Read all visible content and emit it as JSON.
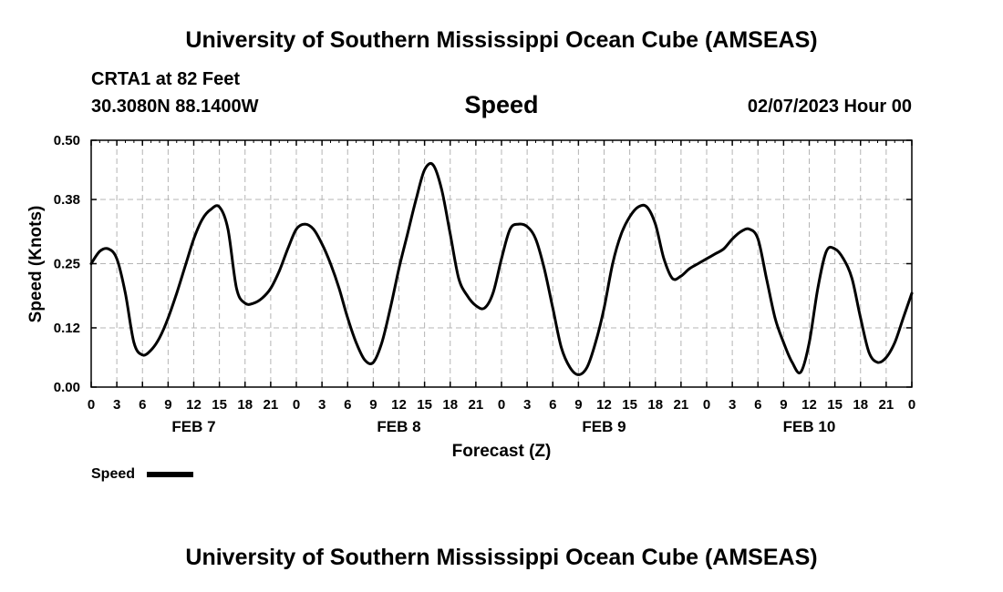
{
  "header": {
    "title": "University of Southern Mississippi Ocean Cube (AMSEAS)",
    "station": "CRTA1 at 82 Feet",
    "coordinates": "30.3080N  88.1400W",
    "plot_title": "Speed",
    "issued": "02/07/2023 Hour 00"
  },
  "footer": {
    "title": "University of Southern Mississippi Ocean Cube (AMSEAS)"
  },
  "colors": {
    "line": "#000000",
    "grid": "#b4b4b4",
    "frame": "#000000"
  },
  "chart_data": {
    "type": "line",
    "title": "Speed",
    "xlabel": "Forecast (Z)",
    "ylabel": "Speed (Knots)",
    "xlim": [
      0,
      96
    ],
    "ylim": [
      0,
      0.5
    ],
    "yticks": [
      0.0,
      0.12,
      0.25,
      0.38,
      0.5
    ],
    "ytick_labels": [
      "0.00",
      "0.12",
      "0.25",
      "0.38",
      "0.50"
    ],
    "xticks": [
      0,
      3,
      6,
      9,
      12,
      15,
      18,
      21,
      24,
      27,
      30,
      33,
      36,
      39,
      42,
      45,
      48,
      51,
      54,
      57,
      60,
      63,
      66,
      69,
      72,
      75,
      78,
      81,
      84,
      87,
      90,
      93,
      96
    ],
    "xtick_labels": [
      "0",
      "3",
      "6",
      "9",
      "12",
      "15",
      "18",
      "21",
      "0",
      "3",
      "6",
      "9",
      "12",
      "15",
      "18",
      "21",
      "0",
      "3",
      "6",
      "9",
      "12",
      "15",
      "18",
      "21",
      "0",
      "3",
      "6",
      "9",
      "12",
      "15",
      "18",
      "21",
      "0"
    ],
    "day_labels": [
      {
        "label": "FEB 7",
        "hour": 12
      },
      {
        "label": "FEB 8",
        "hour": 36
      },
      {
        "label": "FEB 9",
        "hour": 60
      },
      {
        "label": "FEB 10",
        "hour": 84
      }
    ],
    "grid": true,
    "legend": {
      "position": "bottom-left",
      "entries": [
        "Speed"
      ]
    },
    "series": [
      {
        "name": "Speed",
        "x": [
          0,
          1,
          2,
          3,
          4,
          5,
          6,
          7,
          8,
          9,
          10,
          11,
          12,
          13,
          14,
          15,
          16,
          17,
          18,
          19,
          20,
          21,
          22,
          23,
          24,
          25,
          26,
          27,
          28,
          29,
          30,
          31,
          32,
          33,
          34,
          35,
          36,
          37,
          38,
          39,
          40,
          41,
          42,
          43,
          44,
          45,
          46,
          47,
          48,
          49,
          50,
          51,
          52,
          53,
          54,
          55,
          56,
          57,
          58,
          59,
          60,
          61,
          62,
          63,
          64,
          65,
          66,
          67,
          68,
          69,
          70,
          71,
          72,
          73,
          74,
          75,
          76,
          77,
          78,
          79,
          80,
          81,
          82,
          83,
          84,
          85,
          86,
          87,
          88,
          89,
          90,
          91,
          92,
          93,
          94,
          95,
          96
        ],
        "values": [
          0.25,
          0.275,
          0.28,
          0.26,
          0.19,
          0.09,
          0.065,
          0.075,
          0.1,
          0.14,
          0.19,
          0.245,
          0.3,
          0.34,
          0.36,
          0.365,
          0.32,
          0.2,
          0.17,
          0.17,
          0.18,
          0.2,
          0.235,
          0.28,
          0.32,
          0.33,
          0.32,
          0.29,
          0.25,
          0.2,
          0.14,
          0.09,
          0.055,
          0.05,
          0.09,
          0.16,
          0.24,
          0.31,
          0.38,
          0.44,
          0.45,
          0.4,
          0.31,
          0.22,
          0.185,
          0.165,
          0.16,
          0.19,
          0.26,
          0.32,
          0.33,
          0.325,
          0.3,
          0.24,
          0.16,
          0.08,
          0.04,
          0.025,
          0.04,
          0.09,
          0.16,
          0.25,
          0.31,
          0.345,
          0.365,
          0.365,
          0.33,
          0.26,
          0.22,
          0.225,
          0.24,
          0.25,
          0.26,
          0.27,
          0.28,
          0.3,
          0.315,
          0.32,
          0.3,
          0.22,
          0.14,
          0.09,
          0.05,
          0.03,
          0.09,
          0.2,
          0.275,
          0.28,
          0.26,
          0.22,
          0.14,
          0.07,
          0.05,
          0.06,
          0.09,
          0.14,
          0.19
        ]
      }
    ]
  }
}
